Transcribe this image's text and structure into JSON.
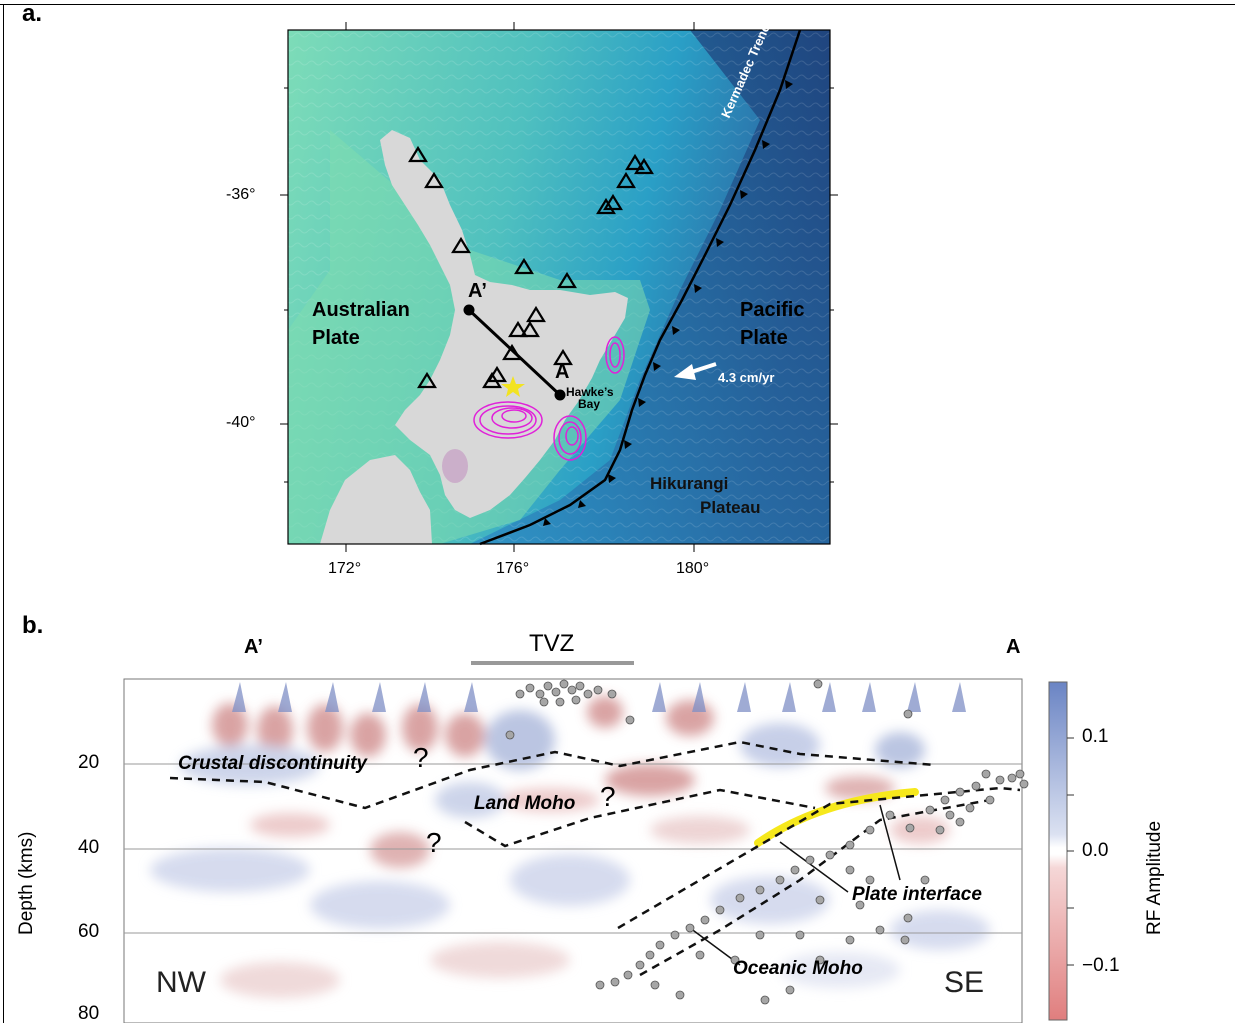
{
  "panel_a": {
    "label": "a.",
    "lat_ticks": [
      "-36°",
      "-40°"
    ],
    "lon_ticks": [
      "172°",
      "176°",
      "180°"
    ],
    "plates": {
      "australian": [
        "Australian",
        "Plate"
      ],
      "pacific": [
        "Pacific",
        "Plate"
      ]
    },
    "trench_label": "Kermadec Trench",
    "plateau": [
      "Hikurangi",
      "Plateau"
    ],
    "velocity_label": "4.3 cm/yr",
    "profile_start": "A’",
    "profile_end": "A",
    "place_label": [
      "Hawke’s",
      "Bay"
    ],
    "colors": {
      "ocean_deep": "#2e5f9e",
      "ocean_mid": "#2aa0c8",
      "shelf": "#79d8b4",
      "land": "#d8d8d8",
      "slow_slip": "#e021d9",
      "star": "#f2e321",
      "volcano": "#000000"
    }
  },
  "panel_b": {
    "label": "b.",
    "section_start": "A’",
    "section_end": "A",
    "tvz_label": "TVZ",
    "ylabel": "Depth (kms)",
    "depth_ticks": [
      "20",
      "40",
      "60",
      "80"
    ],
    "corner_left": "NW",
    "corner_right": "SE",
    "annotations": {
      "crustal": "Crustal discontinuity",
      "land_moho": "Land Moho",
      "plate_interface": "Plate interface",
      "oceanic_moho": "Oceanic Moho",
      "question": "?"
    },
    "colorbar": {
      "label": "RF Amplitude",
      "ticks": [
        "0.1",
        "0.0",
        "−0.1"
      ],
      "colors": {
        "positive": "#6a84c4",
        "zero": "#ffffff",
        "negative": "#e07e7e"
      }
    },
    "interface_color": "#f6e81c"
  }
}
